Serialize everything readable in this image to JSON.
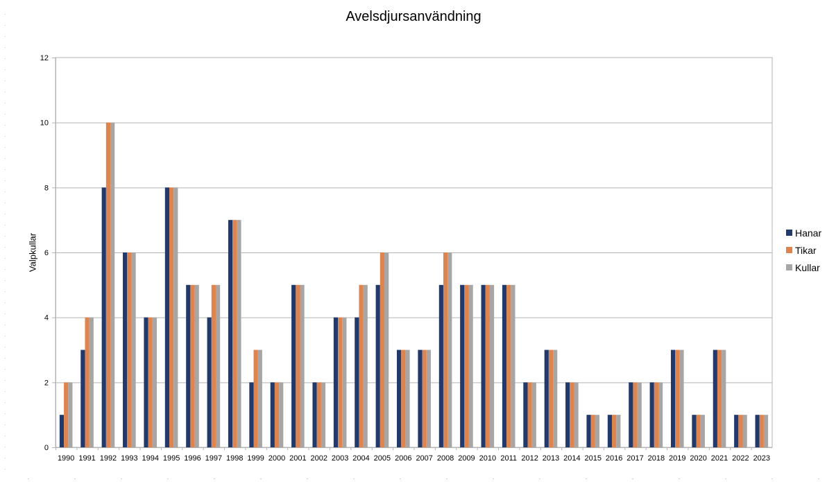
{
  "chart_data": {
    "type": "bar",
    "title": "Avelsdjursanvändning",
    "xlabel": "",
    "ylabel": "Valpkullar",
    "ylim": [
      0,
      12
    ],
    "yticks": [
      0,
      2,
      4,
      6,
      8,
      10,
      12
    ],
    "grid": true,
    "legend_position": "right",
    "categories": [
      "1990",
      "1991",
      "1992",
      "1993",
      "1994",
      "1995",
      "1996",
      "1997",
      "1998",
      "1999",
      "2000",
      "2001",
      "2002",
      "2003",
      "2004",
      "2005",
      "2006",
      "2007",
      "2008",
      "2009",
      "2010",
      "2011",
      "2012",
      "2013",
      "2014",
      "2015",
      "2016",
      "2017",
      "2018",
      "2019",
      "2020",
      "2021",
      "2022",
      "2023"
    ],
    "series": [
      {
        "name": "Hanar",
        "color": "#1f3a6e",
        "values": [
          1,
          3,
          8,
          6,
          4,
          8,
          5,
          4,
          7,
          2,
          2,
          5,
          2,
          4,
          4,
          5,
          3,
          3,
          5,
          5,
          5,
          5,
          2,
          3,
          2,
          1,
          1,
          2,
          2,
          3,
          1,
          3,
          1,
          1
        ]
      },
      {
        "name": "Tikar",
        "color": "#e2834a",
        "values": [
          2,
          4,
          10,
          6,
          4,
          8,
          5,
          5,
          7,
          3,
          2,
          5,
          2,
          4,
          5,
          6,
          3,
          3,
          6,
          5,
          5,
          5,
          2,
          3,
          2,
          1,
          1,
          2,
          2,
          3,
          1,
          3,
          1,
          1
        ]
      },
      {
        "name": "Kullar",
        "color": "#a6a6a6",
        "values": [
          2,
          4,
          10,
          6,
          4,
          8,
          5,
          5,
          7,
          3,
          2,
          5,
          2,
          4,
          5,
          6,
          3,
          3,
          6,
          5,
          5,
          5,
          2,
          3,
          2,
          1,
          1,
          2,
          2,
          3,
          1,
          3,
          1,
          1
        ]
      }
    ]
  }
}
